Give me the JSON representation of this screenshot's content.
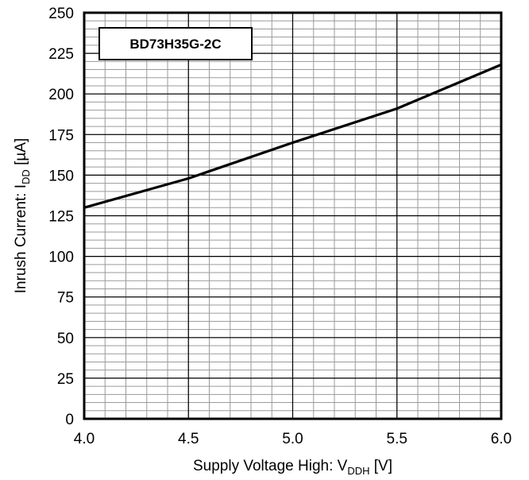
{
  "chart_data": {
    "type": "line",
    "xlabel": "Supply Voltage High: V",
    "xlabel_sub": "DDH",
    "xlabel_unit": " [V]",
    "ylabel": "Inrush Current: I",
    "ylabel_sub": "DD",
    "ylabel_unit": " [µA]",
    "xlim": [
      4.0,
      6.0
    ],
    "ylim": [
      0,
      250
    ],
    "xticks": [
      4.0,
      4.5,
      5.0,
      5.5,
      6.0
    ],
    "xtick_labels": [
      "4.0",
      "4.5",
      "5.0",
      "5.5",
      "6.0"
    ],
    "yticks": [
      0,
      25,
      50,
      75,
      100,
      125,
      150,
      175,
      200,
      225,
      250
    ],
    "ytick_labels": [
      "0",
      "25",
      "50",
      "75",
      "100",
      "125",
      "150",
      "175",
      "200",
      "225",
      "250"
    ],
    "grid": true,
    "legend_position": "top-left",
    "series": [
      {
        "name": "BD73H35G-2C",
        "color": "#000000",
        "x": [
          4.0,
          4.5,
          5.0,
          5.5,
          6.0
        ],
        "y": [
          130,
          148,
          170,
          191,
          218
        ]
      }
    ]
  }
}
